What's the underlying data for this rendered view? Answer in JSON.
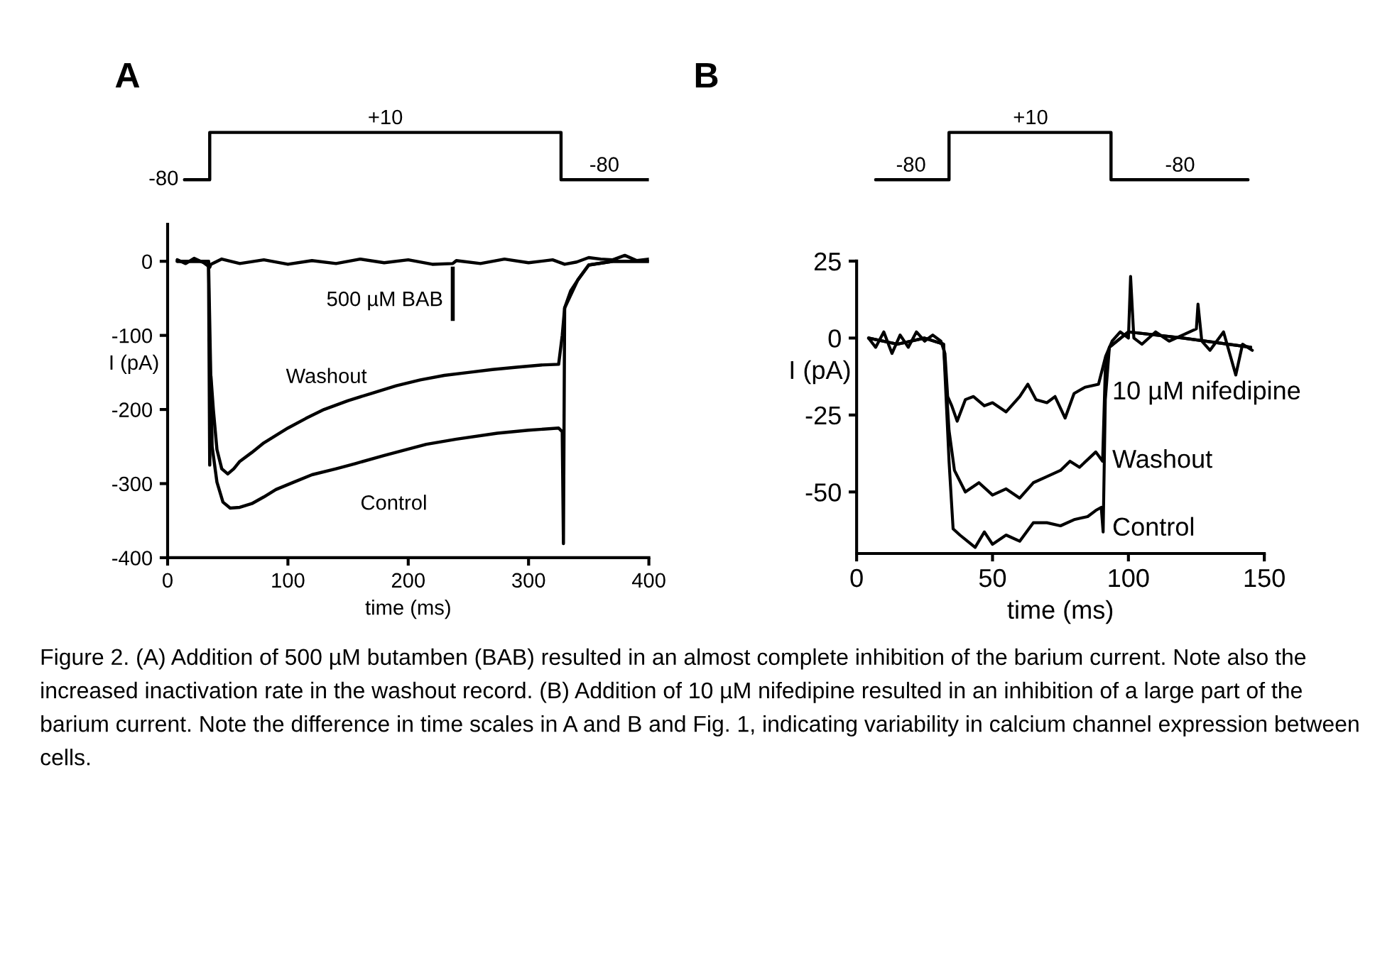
{
  "chart_data": [
    {
      "type": "line",
      "title": "A",
      "xlim": [
        0,
        400
      ],
      "tick_labels": false,
      "series": [
        {
          "color": "#000000",
          "x": [
            14,
            35,
            35,
            181,
            327,
            327,
            363,
            400
          ],
          "values": [
            -80,
            -80,
            10,
            10,
            10,
            -80,
            -80,
            -80
          ],
          "value_labels": [
            "-80",
            null,
            null,
            "+10",
            null,
            null,
            "-80",
            null
          ]
        }
      ]
    },
    {
      "type": "line",
      "xlabel": "time (ms)",
      "ylabel": "I (pA)",
      "xlim": [
        0,
        400
      ],
      "ylim": [
        -400,
        50
      ],
      "xticks": [
        0,
        100,
        200,
        300,
        400
      ],
      "yticks": [
        -400,
        -300,
        -200,
        -100,
        0
      ],
      "grid": false,
      "legend": false,
      "series": [
        {
          "color": "#000000",
          "x": [
            8,
            15,
            22,
            30,
            35,
            36,
            45,
            60,
            80,
            100,
            120,
            140,
            160,
            180,
            200,
            220,
            237,
            240,
            260,
            280,
            300,
            320,
            330,
            340,
            350,
            360,
            370,
            380,
            390,
            400
          ],
          "values": [
            2,
            -3,
            4,
            -2,
            -8,
            -4,
            3,
            -3,
            2,
            -4,
            1,
            -3,
            3,
            -2,
            2,
            -4,
            -3,
            1,
            -3,
            3,
            -2,
            2,
            -4,
            -1,
            5,
            3,
            2,
            8,
            1,
            3
          ]
        },
        {
          "color": "#000000",
          "x": [
            8,
            20,
            34,
            35,
            36,
            38,
            41,
            45,
            50,
            55,
            60,
            70,
            80,
            90,
            100,
            115,
            130,
            150,
            170,
            190,
            210,
            230,
            250,
            270,
            290,
            310,
            325,
            328,
            330,
            335,
            341,
            350,
            370,
            400
          ],
          "values": [
            0,
            0,
            0,
            -275,
            -155,
            -200,
            -254,
            -280,
            -287,
            -280,
            -270,
            -258,
            -245,
            -235,
            -225,
            -212,
            -200,
            -188,
            -178,
            -168,
            -160,
            -154,
            -150,
            -146,
            -143,
            -140,
            -139,
            -100,
            -63,
            -40,
            -25,
            -5,
            0,
            0
          ]
        },
        {
          "color": "#000000",
          "x": [
            8,
            20,
            34,
            37,
            41,
            46,
            52,
            60,
            70,
            80,
            90,
            105,
            120,
            140,
            156,
            180,
            215,
            240,
            274,
            300,
            325,
            328,
            329,
            330,
            341,
            350,
            370,
            400
          ],
          "values": [
            0,
            0,
            0,
            -250,
            -298,
            -325,
            -333,
            -332,
            -327,
            -318,
            -308,
            -298,
            -288,
            -280,
            -273,
            -262,
            -247,
            -240,
            -232,
            -228,
            -225,
            -230,
            -381,
            -63,
            -25,
            -5,
            0,
            0
          ]
        }
      ],
      "annotations": [
        "Washout",
        "Control",
        "500 µM BAB"
      ]
    },
    {
      "type": "line",
      "title": "B",
      "xlim": [
        0,
        150
      ],
      "tick_labels": false,
      "series": [
        {
          "color": "#000000",
          "x": [
            7,
            20,
            34,
            34,
            64,
            93.6,
            93.6,
            119,
            144
          ],
          "values": [
            -80,
            -80,
            -80,
            10,
            10,
            10,
            -80,
            -80,
            -80
          ],
          "value_labels": [
            null,
            "-80",
            null,
            null,
            "+10",
            null,
            null,
            "-80",
            null
          ]
        }
      ]
    },
    {
      "type": "line",
      "xlabel": "time (ms)",
      "ylabel": "I (pA)",
      "xlim": [
        0,
        150
      ],
      "ylim": [
        -70,
        25
      ],
      "xticks": [
        0,
        50,
        100,
        150
      ],
      "yticks": [
        -50,
        -25,
        0,
        25
      ],
      "grid": false,
      "legend": false,
      "series": [
        {
          "color": "#000000",
          "x": [
            4.4,
            7,
            10,
            13,
            16,
            19,
            22,
            25,
            28,
            31,
            32.5,
            33.5,
            35,
            37,
            40,
            43,
            47,
            50,
            55,
            60,
            63,
            66,
            70,
            73,
            76.7,
            80,
            84,
            89,
            91.6,
            94,
            97,
            100,
            100.8,
            102,
            105,
            110,
            115,
            120,
            125,
            125.6,
            127,
            130,
            135,
            139.5,
            142,
            145.6
          ],
          "values": [
            0,
            -3,
            2,
            -5,
            1,
            -3,
            2,
            -1,
            1,
            -1,
            -5,
            -19,
            -22,
            -27,
            -20,
            -19,
            -22,
            -21,
            -24,
            -19,
            -15,
            -20,
            -21,
            -19,
            -26,
            -18,
            -16,
            -15,
            -6,
            -1,
            2,
            0,
            20,
            0,
            -2,
            2,
            -1,
            1,
            3,
            11,
            -1,
            -4,
            2,
            -12,
            -2,
            -4
          ]
        },
        {
          "color": "#000000",
          "x": [
            4.4,
            15,
            25,
            32,
            34,
            36,
            40,
            45,
            50,
            55,
            60,
            65,
            70,
            75,
            78.5,
            82,
            88,
            90.5,
            91.5,
            93,
            100,
            120,
            145
          ],
          "values": [
            0,
            -2,
            0,
            -2,
            -30,
            -43,
            -50,
            -47,
            -51,
            -49,
            -52,
            -47,
            -45,
            -43,
            -40,
            -42,
            -37,
            -40,
            -10,
            -3,
            2,
            0,
            -3
          ]
        },
        {
          "color": "#000000",
          "x": [
            4.4,
            15,
            25,
            32,
            34,
            35.5,
            38,
            43.6,
            47,
            50,
            55,
            60,
            65,
            70,
            75,
            80,
            85,
            88,
            90,
            90.7,
            91.5,
            93,
            100,
            120,
            145
          ],
          "values": [
            0,
            -2,
            0,
            -2,
            -40,
            -62,
            -64,
            -68,
            -63,
            -67,
            -64,
            -66,
            -60,
            -60,
            -61,
            -59,
            -58,
            -56,
            -55,
            -63,
            -20,
            -3,
            2,
            0,
            -3
          ]
        }
      ],
      "annotations": [
        "10 µM nifedipine",
        "Washout",
        "Control",
        "Figure 2. (A) Addition of 500 µM butamben (BAB) resulted in an almost complete inhibition of the barium current. Note also the increased inactivation rate in the washout record. (B) Addition of 10 µM nifedipine resulted in an inhibition of a large part of the barium current. Note the difference in time scales in A and B and Fig. 1, indicating variability in calcium channel expression between cells."
      ]
    }
  ]
}
